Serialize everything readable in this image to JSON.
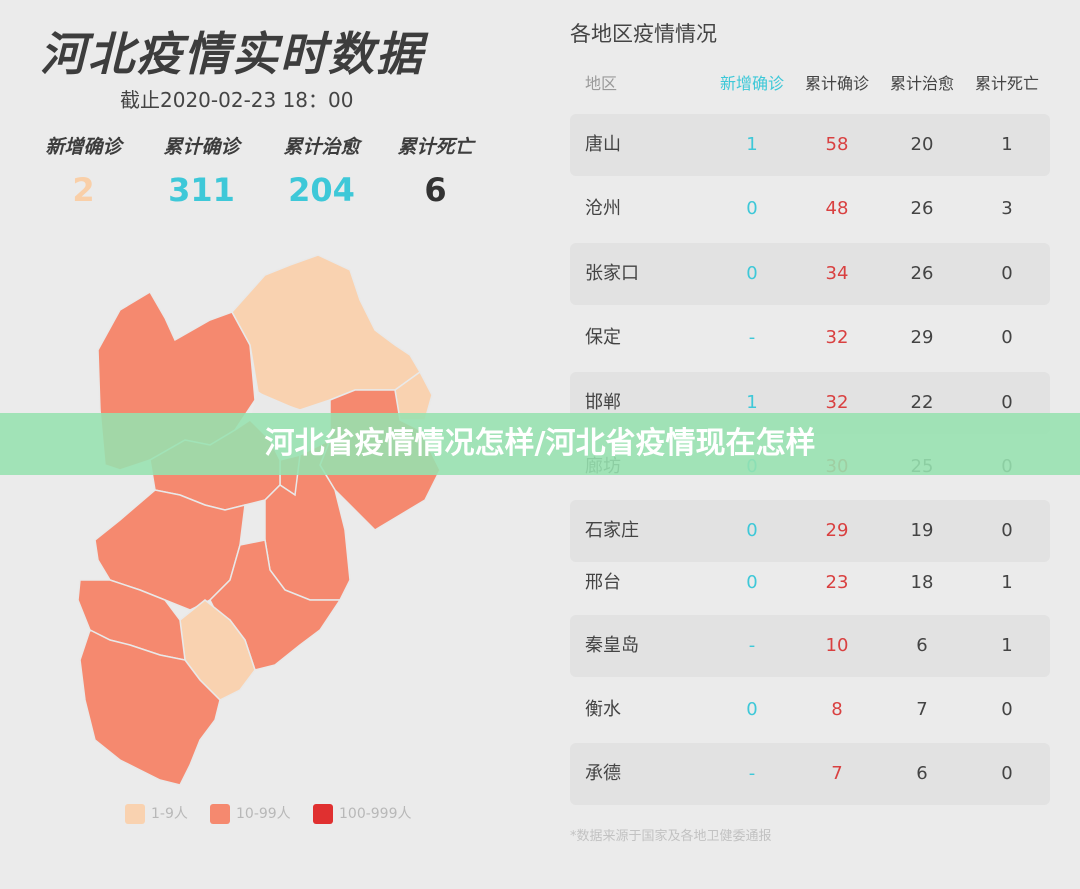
{
  "header": {
    "title": "河北疫情实时数据",
    "cutoff": "截止2020-02-23 18：00"
  },
  "summary": [
    {
      "label": "新增确诊",
      "value": "2",
      "color": "#f9cfa8"
    },
    {
      "label": "累计确诊",
      "value": "311",
      "color": "#3ec8d8"
    },
    {
      "label": "累计治愈",
      "value": "204",
      "color": "#3ec8d8"
    },
    {
      "label": "累计死亡",
      "value": "6",
      "color": "#333333"
    }
  ],
  "legend": [
    {
      "label": "1-9人",
      "color": "#f9d2b0"
    },
    {
      "label": "10-99人",
      "color": "#f5896f"
    },
    {
      "label": "100-999人",
      "color": "#e03030"
    }
  ],
  "table": {
    "title": "各地区疫情情况",
    "columns": [
      "地区",
      "新增确诊",
      "累计确诊",
      "累计治愈",
      "累计死亡"
    ],
    "rows": [
      [
        "唐山",
        "1",
        "58",
        "20",
        "1"
      ],
      [
        "沧州",
        "0",
        "48",
        "26",
        "3"
      ],
      [
        "张家口",
        "0",
        "34",
        "26",
        "0"
      ],
      [
        "保定",
        "-",
        "32",
        "29",
        "0"
      ],
      [
        "邯郸",
        "1",
        "32",
        "22",
        "0"
      ],
      [
        "廊坊",
        "0",
        "30",
        "25",
        "0"
      ],
      [
        "石家庄",
        "0",
        "29",
        "19",
        "0"
      ],
      [
        "邢台",
        "0",
        "23",
        "18",
        "1"
      ],
      [
        "秦皇岛",
        "-",
        "10",
        "6",
        "1"
      ],
      [
        "衡水",
        "0",
        "8",
        "7",
        "0"
      ],
      [
        "承德",
        "-",
        "7",
        "6",
        "0"
      ]
    ]
  },
  "source": "*数据来源于国家及各地卫健委通报",
  "banner": "河北省疫情情况怎样/河北省疫情现在怎样"
}
